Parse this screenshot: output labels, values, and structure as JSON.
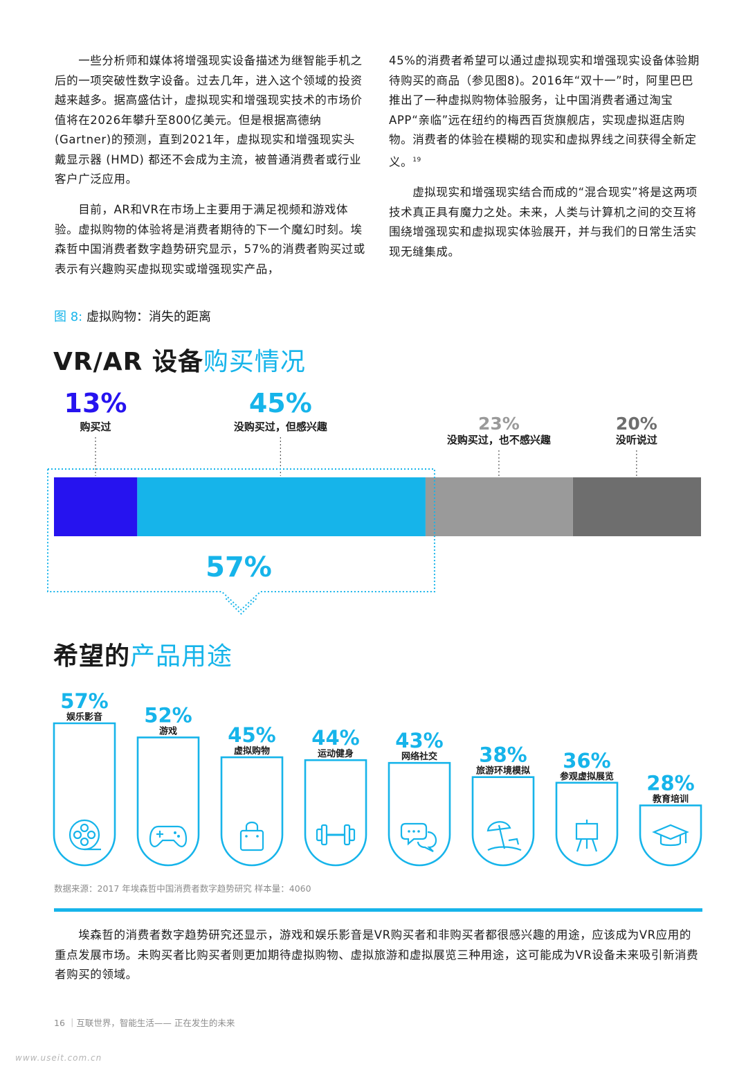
{
  "paragraphs": {
    "left_1": "　　一些分析师和媒体将增强现实设备描述为继智能手机之后的一项突破性数字设备。过去几年，进入这个领域的投资越来越多。据高盛估计，虚拟现实和增强现实技术的市场价值将在2026年攀升至800亿美元。但是根据高德纳(Gartner)的预测，直到2021年，虚拟现实和增强现实头戴显示器 (HMD) 都还不会成为主流，被普通消费者或行业客户广泛应用。",
    "left_2": "　　目前，AR和VR在市场上主要用于满足视频和游戏体验。虚拟购物的体验将是消费者期待的下一个魔幻时刻。埃森哲中国消费者数字趋势研究显示，57%的消费者购买过或表示有兴趣购买虚拟现实或增强现实产品，",
    "right_1": "45%的消费者希望可以通过虚拟现实和增强现实设备体验期待购买的商品（参见图8)。2016年“双十一”时，阿里巴巴推出了一种虚拟购物体验服务，让中国消费者通过淘宝APP“亲临”远在纽约的梅西百货旗舰店，实现虚拟逛店购物。消费者的体验在模糊的现实和虚拟界线之间获得全新定义。",
    "right_1_note": "19",
    "right_2": "　　虚拟现实和增强现实结合而成的“混合现实”将是这两项技术真正具有魔力之处。未来，人类与计算机之间的交互将围绕增强现实和虚拟现实体验展开，并与我们的日常生活实现无缝集成。",
    "bottom": "　　埃森哲的消费者数字趋势研究还显示，游戏和娱乐影音是VR购买者和非购买者都很感兴趣的用途，应该成为VR应用的重点发展市场。未购买者比购买者则更加期待虚拟购物、虚拟旅游和虚拟展览三种用途，这可能成为VR设备未来吸引新消费者购买的领域。"
  },
  "figure": {
    "caption_num": "图 8:",
    "caption_text": "虚拟购物：消失的距离",
    "title1_bold": "VR/AR 设备",
    "title1_light": "购买情况",
    "title2_bold": "希望的",
    "title2_light": "产品用途",
    "source": "数据来源：2017 年埃森哲中国消费者数字趋势研究 样本量：4060"
  },
  "colors": {
    "accent": "#16b4ea",
    "purchased": "#2613ef",
    "interested": "#16b4ea",
    "not_interested": "#9a9a9a",
    "not_heard": "#6e6e6e"
  },
  "chart_data": [
    {
      "type": "bar",
      "orientation": "stacked-horizontal",
      "title": "VR/AR 设备购买情况",
      "segments": [
        {
          "label": "购买过",
          "value": 13,
          "value_label": "13%",
          "color": "#2613ef"
        },
        {
          "label": "没购买过，但感兴趣",
          "value": 45,
          "value_label": "45%",
          "color": "#16b4ea"
        },
        {
          "label": "没购买过，也不感兴趣",
          "value": 23,
          "value_label": "23%",
          "color": "#9a9a9a"
        },
        {
          "label": "没听说过",
          "value": 20,
          "value_label": "20%",
          "color": "#6e6e6e"
        }
      ],
      "combined_label": "57%"
    },
    {
      "type": "bar",
      "title": "希望的产品用途",
      "categories": [
        "娱乐影音",
        "游戏",
        "虚拟购物",
        "运动健身",
        "网络社交",
        "旅游环境模拟",
        "参观虚拟展览",
        "教育培训"
      ],
      "values": [
        57,
        52,
        45,
        44,
        43,
        38,
        36,
        28
      ],
      "value_labels": [
        "57%",
        "52%",
        "45%",
        "44%",
        "43%",
        "38%",
        "36%",
        "28%"
      ],
      "icons": [
        "film-reel-icon",
        "gamepad-icon",
        "shopping-bag-icon",
        "dumbbell-icon",
        "chat-bubbles-icon",
        "beach-umbrella-icon",
        "easel-icon",
        "graduation-cap-icon"
      ]
    }
  ],
  "footer": {
    "page": "16 ｜互联世界，智能生活—— 正在发生的未来",
    "watermark": "www.useit.com.cn"
  }
}
